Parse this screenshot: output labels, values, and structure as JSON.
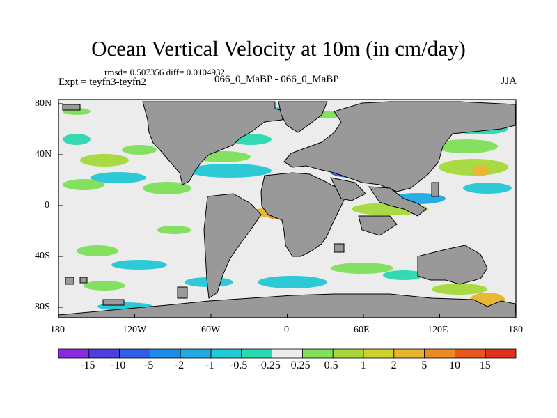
{
  "title": "Ocean Vertical Velocity at 10m (in cm/day)",
  "stats": "rmsd= 0.507356 diff= 0.0104932",
  "expt": "Expt = teyfn3-teyfn2",
  "runs": "066_0_MaBP - 066_0_MaBP",
  "season": "JJA",
  "x_ticks": [
    "180",
    "120W",
    "60W",
    "0",
    "60E",
    "120E",
    "180"
  ],
  "y_ticks": [
    "80N",
    "40N",
    "0",
    "40S",
    "80S"
  ],
  "colorbar": {
    "colors": [
      "#8a2be2",
      "#4b3fe0",
      "#2f5fe6",
      "#1f8be8",
      "#22a9e6",
      "#22c9d6",
      "#2bd9b0",
      "#ececec",
      "#7fe05a",
      "#a6d83a",
      "#cfd12f",
      "#e8b52c",
      "#ec8a26",
      "#e8561f",
      "#e0311c"
    ],
    "labels": [
      "-15",
      "-10",
      "-5",
      "-2",
      "-1",
      "-0.5",
      "-0.25",
      "0.25",
      "0.5",
      "1",
      "2",
      "5",
      "10",
      "15"
    ]
  }
}
